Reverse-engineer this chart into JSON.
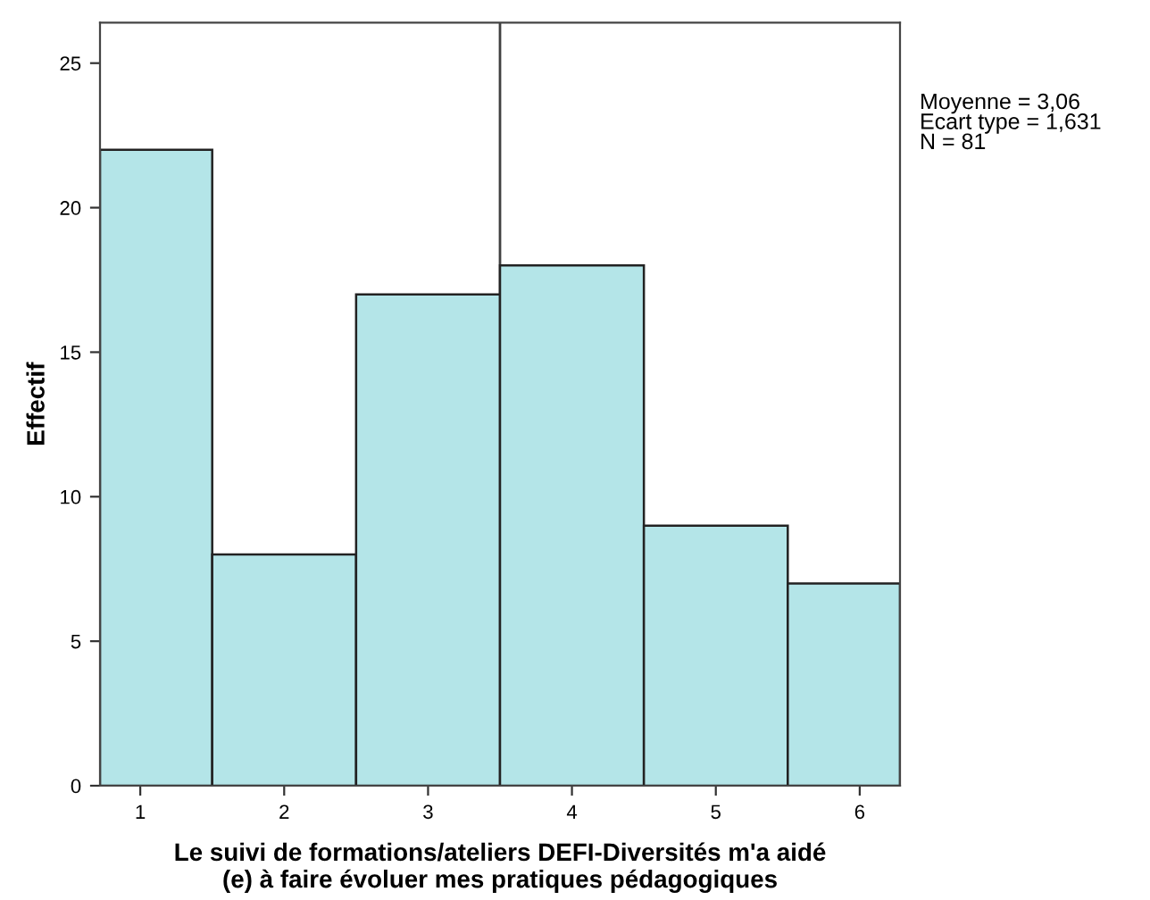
{
  "chart_data": {
    "type": "histogram",
    "xlabel": "Le suivi de formations/ateliers DEFI-Diversités m'a aidé\n(e) à faire évoluer mes pratiques pédagogiques",
    "ylabel": "Effectif",
    "bins": [
      0.72,
      1.5,
      2.5,
      3.5,
      4.5,
      5.5,
      6.28
    ],
    "values": [
      22,
      8,
      17,
      18,
      9,
      7
    ],
    "color": "#b4e5e8",
    "xlim": [
      0.72,
      6.28
    ],
    "ylim": [
      0,
      26.4
    ],
    "xticks": [
      1,
      2,
      3,
      4,
      5,
      6
    ],
    "yticks": [
      0,
      5,
      10,
      15,
      20,
      25
    ],
    "ref_lines": [
      {
        "axis": "x",
        "value": 3.5,
        "color": "#404040"
      }
    ],
    "annotations": [
      "Moyenne = 3,06\nEcart type = 1,631\nN = 81"
    ],
    "grid": false,
    "legend": false
  }
}
